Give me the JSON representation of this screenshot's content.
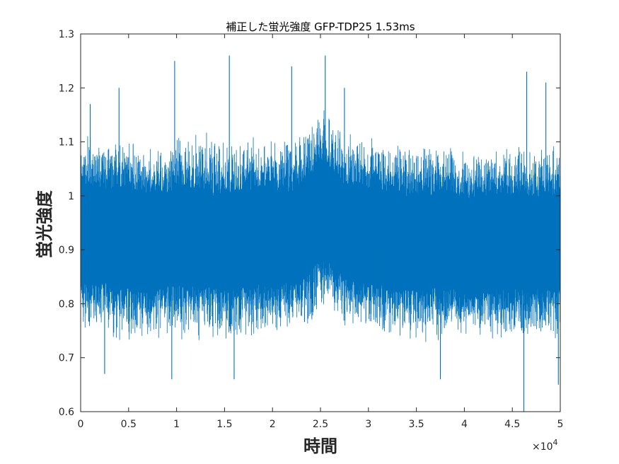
{
  "chart_data": {
    "type": "line",
    "title": "補正した蛍光強度 GFP-TDP25 1.53ms",
    "xlabel": "時間",
    "ylabel": "蛍光強度",
    "x_exponent_label": "×10",
    "x_exponent": "4",
    "xlim": [
      0,
      50000
    ],
    "ylim": [
      0.6,
      1.3
    ],
    "x_ticks": [
      0,
      5000,
      10000,
      15000,
      20000,
      25000,
      30000,
      35000,
      40000,
      45000,
      50000
    ],
    "x_tick_labels": [
      "0",
      "0.5",
      "1",
      "1.5",
      "2",
      "2.5",
      "3",
      "3.5",
      "4",
      "4.5",
      "5"
    ],
    "y_ticks": [
      0.6,
      0.7,
      0.8,
      0.9,
      1.0,
      1.1,
      1.2,
      1.3
    ],
    "y_tick_labels": [
      "0.6",
      "0.7",
      "0.8",
      "0.9",
      "1",
      "1.1",
      "1.2",
      "1.3"
    ],
    "grid": false,
    "series": [
      {
        "color": "#0072BD",
        "summary_envelope": {
          "x": [
            0,
            2500,
            5000,
            7500,
            10000,
            12500,
            15000,
            17500,
            20000,
            22500,
            24000,
            25000,
            26000,
            27500,
            30000,
            32500,
            35000,
            37500,
            40000,
            42500,
            45000,
            47500,
            50000
          ],
          "upper": [
            1.08,
            1.07,
            1.07,
            1.06,
            1.07,
            1.07,
            1.06,
            1.07,
            1.07,
            1.07,
            1.1,
            1.13,
            1.11,
            1.08,
            1.07,
            1.06,
            1.06,
            1.06,
            1.05,
            1.05,
            1.06,
            1.05,
            1.06
          ],
          "lower": [
            0.78,
            0.78,
            0.77,
            0.77,
            0.78,
            0.77,
            0.77,
            0.77,
            0.78,
            0.78,
            0.8,
            0.83,
            0.82,
            0.79,
            0.78,
            0.77,
            0.77,
            0.77,
            0.77,
            0.77,
            0.77,
            0.77,
            0.77
          ],
          "mean": 0.92
        },
        "notable_points": [
          {
            "x": 1000,
            "y": 1.17
          },
          {
            "x": 2500,
            "y": 0.67
          },
          {
            "x": 4000,
            "y": 1.2
          },
          {
            "x": 9500,
            "y": 0.66
          },
          {
            "x": 9800,
            "y": 1.25
          },
          {
            "x": 15500,
            "y": 1.26
          },
          {
            "x": 16000,
            "y": 0.66
          },
          {
            "x": 22000,
            "y": 1.24
          },
          {
            "x": 25500,
            "y": 1.26
          },
          {
            "x": 27500,
            "y": 1.2
          },
          {
            "x": 37500,
            "y": 0.66
          },
          {
            "x": 46200,
            "y": 0.6
          },
          {
            "x": 46500,
            "y": 1.23
          },
          {
            "x": 48500,
            "y": 1.21
          },
          {
            "x": 49800,
            "y": 0.65
          }
        ]
      }
    ]
  }
}
